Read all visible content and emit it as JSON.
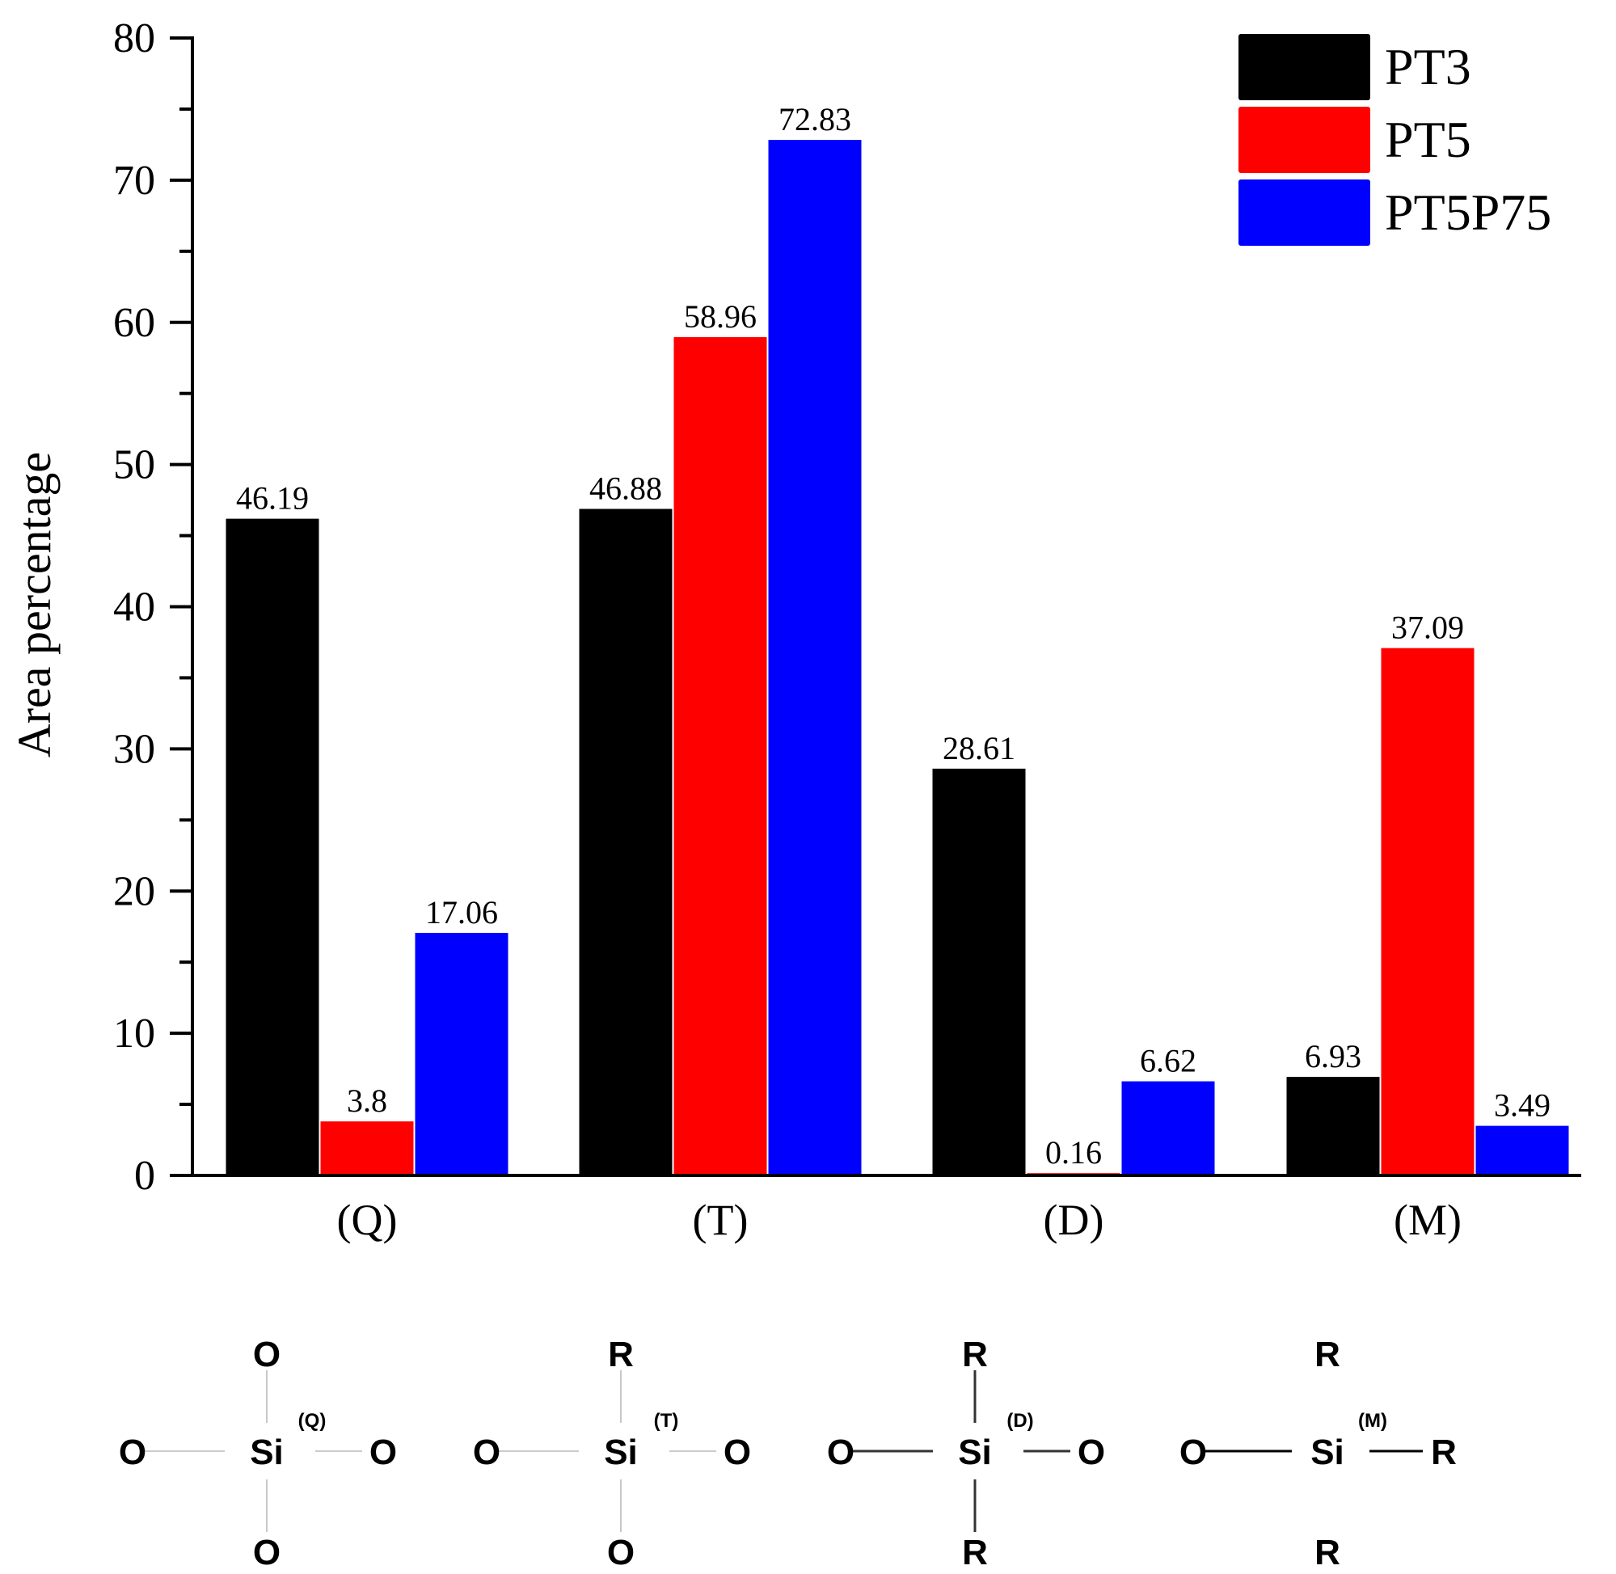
{
  "chart_data": {
    "type": "bar",
    "ylabel": "Area percentage",
    "xlabel": "",
    "ylim": [
      0,
      80
    ],
    "yticks": [
      "0",
      "10",
      "20",
      "30",
      "40",
      "50",
      "60",
      "70",
      "80"
    ],
    "categories": [
      "(Q)",
      "(T)",
      "(D)",
      "(M)"
    ],
    "series": [
      {
        "name": "PT3",
        "color": "#000000",
        "values": [
          46.19,
          46.88,
          28.61,
          6.93
        ],
        "labels": [
          "46.19",
          "46.88",
          "28.61",
          "6.93"
        ]
      },
      {
        "name": "PT5",
        "color": "#ff0000",
        "values": [
          3.8,
          58.96,
          0.16,
          37.09
        ],
        "labels": [
          "3.8",
          "58.96",
          "0.16",
          "37.09"
        ]
      },
      {
        "name": "PT5P75",
        "color": "#0000ff",
        "values": [
          17.06,
          72.83,
          6.62,
          3.49
        ],
        "labels": [
          "17.06",
          "72.83",
          "6.62",
          "3.49"
        ]
      }
    ],
    "legend_position": "top-right",
    "grid": false
  },
  "structures": [
    {
      "superscript": "(Q)",
      "top": "O",
      "left": "O",
      "center": "Si",
      "right": "O",
      "bottom": "O"
    },
    {
      "superscript": "(T)",
      "top": "R",
      "left": "O",
      "center": "Si",
      "right": "O",
      "bottom": "O"
    },
    {
      "superscript": "(D)",
      "top": "R",
      "left": "O",
      "center": "Si",
      "right": "O",
      "bottom": "R"
    },
    {
      "superscript": "(M)",
      "top": "R",
      "left": "O",
      "center": "Si",
      "right": "R",
      "bottom": "R"
    }
  ]
}
